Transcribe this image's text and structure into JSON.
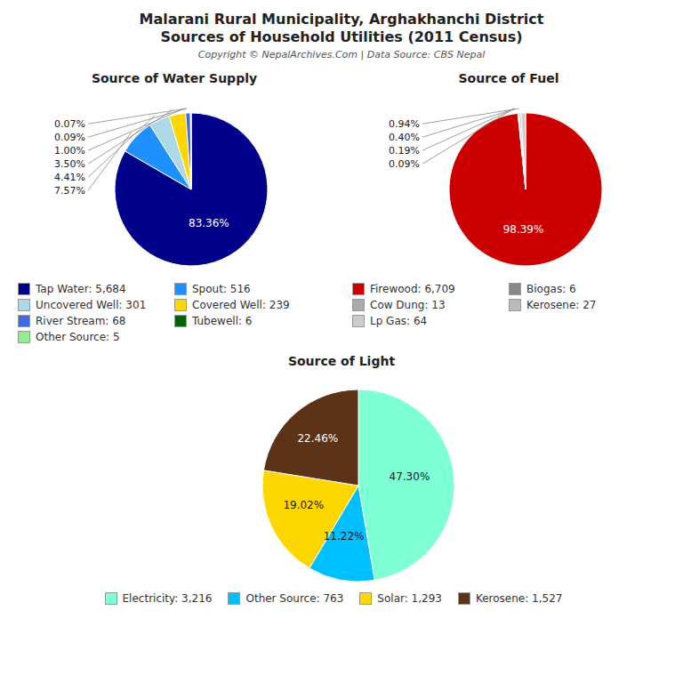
{
  "title": "Malarani Rural Municipality, Arghakhanchi District",
  "subtitle": "Sources of Household Utilities (2011 Census)",
  "annotations": [
    "Copyright © NepalArchives.Com | Data Source: CBS Nepal"
  ],
  "chart_data": [
    {
      "type": "pie",
      "title": "Source of Water Supply",
      "categories": [
        "Tap Water: 5,684",
        "Spout: 516",
        "Uncovered Well: 301",
        "Covered Well: 239",
        "River Stream: 68",
        "Tubewell: 6",
        "Other Source: 5"
      ],
      "values": [
        83.36,
        7.57,
        4.41,
        3.5,
        1,
        0.09,
        0.07
      ],
      "value_labels": [
        "83.36%",
        "7.57%",
        "4.41%",
        "3.50%",
        "1.00%",
        "0.09%",
        "0.07%"
      ],
      "colors": [
        "#00008B",
        "#1E90FF",
        "#ADD8E6",
        "#FFD700",
        "#4169E1",
        "#006400",
        "#90EE90"
      ],
      "data_labels": true,
      "legend": "bottom"
    },
    {
      "type": "pie",
      "title": "Source of Fuel",
      "categories": [
        "Firewood: 6,709",
        "Biogas: 6",
        "Cow Dung: 13",
        "Kerosene: 27",
        "Lp Gas: 64"
      ],
      "values": [
        98.39,
        0.09,
        0.19,
        0.4,
        0.94
      ],
      "value_labels": [
        "98.39%",
        "0.09%",
        "0.19%",
        "0.40%",
        "0.94%"
      ],
      "colors": [
        "#CC0000",
        "#888888",
        "#AAAAAA",
        "#BBBBBB",
        "#CCCCCC"
      ],
      "data_labels": true,
      "legend": "bottom"
    },
    {
      "type": "pie",
      "title": "Source of Light",
      "categories": [
        "Electricity: 3,216",
        "Other Source: 763",
        "Solar: 1,293",
        "Kerosene: 1,527"
      ],
      "values": [
        47.3,
        11.22,
        19.02,
        22.46
      ],
      "value_labels": [
        "47.30%",
        "11.22%",
        "19.02%",
        "22.46%"
      ],
      "colors": [
        "#7FFFD4",
        "#00BFFF",
        "#FFD700",
        "#5C3317"
      ],
      "data_labels": true,
      "legend": "bottom"
    }
  ]
}
